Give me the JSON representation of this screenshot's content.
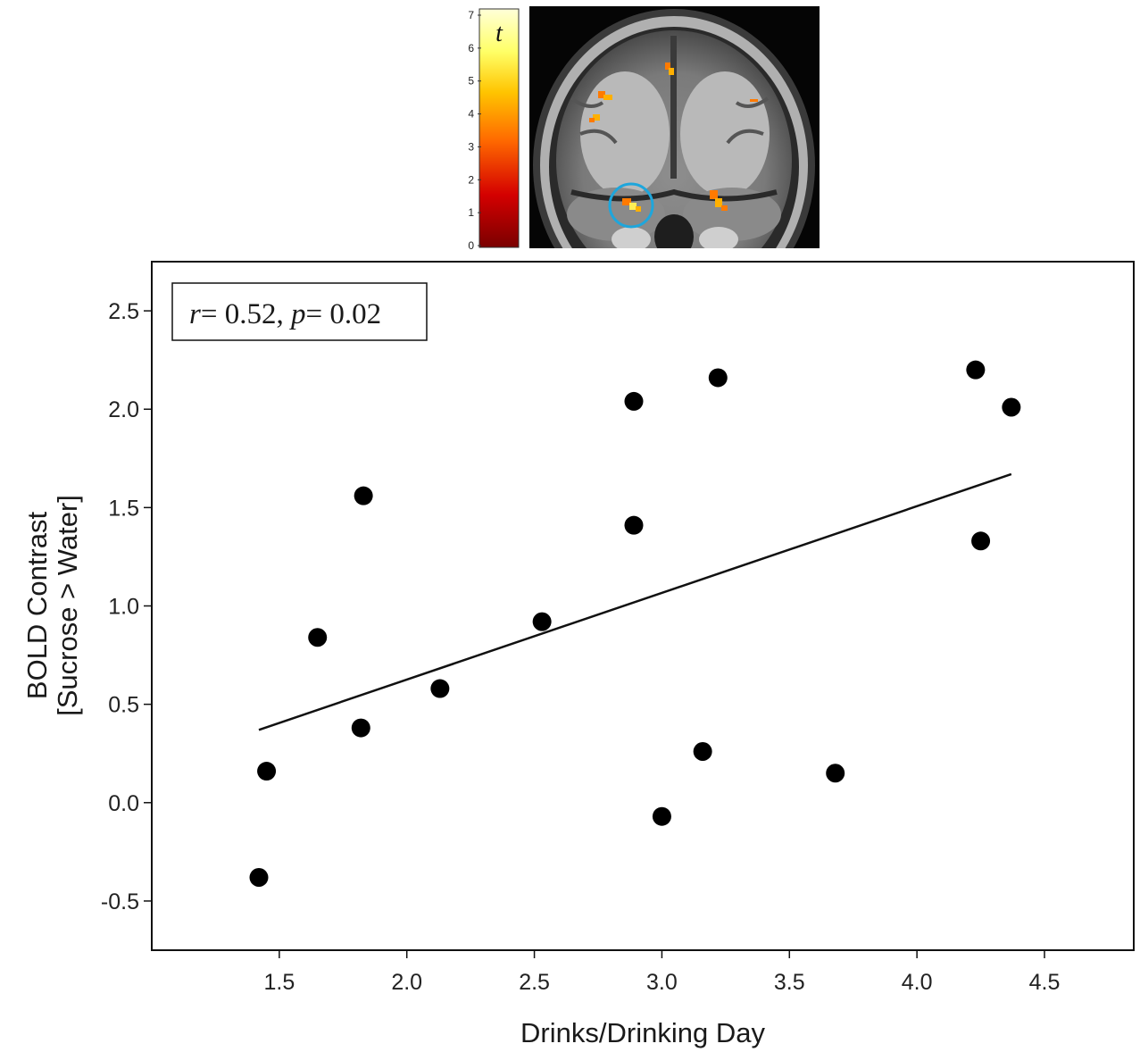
{
  "chart_data": {
    "type": "scatter",
    "title": "",
    "xlabel": "Drinks/Drinking Day",
    "ylabel": [
      "BOLD Contrast",
      "[Sucrose > Water]"
    ],
    "xlim": [
      1.0,
      4.85
    ],
    "ylim": [
      -0.75,
      2.75
    ],
    "x_ticks": [
      "1.5",
      "2.0",
      "2.5",
      "3.0",
      "3.5",
      "4.0",
      "4.5"
    ],
    "y_ticks": [
      "-0.5",
      "0.0",
      "0.5",
      "1.0",
      "1.5",
      "2.0",
      "2.5"
    ],
    "grid": false,
    "points": [
      {
        "x": 1.42,
        "y": -0.38
      },
      {
        "x": 1.45,
        "y": 0.16
      },
      {
        "x": 1.65,
        "y": 0.84
      },
      {
        "x": 1.82,
        "y": 0.38
      },
      {
        "x": 1.83,
        "y": 1.56
      },
      {
        "x": 2.13,
        "y": 0.58
      },
      {
        "x": 2.53,
        "y": 0.92
      },
      {
        "x": 2.89,
        "y": 2.04
      },
      {
        "x": 2.89,
        "y": 1.41
      },
      {
        "x": 3.0,
        "y": -0.07
      },
      {
        "x": 3.16,
        "y": 0.26
      },
      {
        "x": 3.22,
        "y": 2.16
      },
      {
        "x": 3.68,
        "y": 0.15
      },
      {
        "x": 4.23,
        "y": 2.2
      },
      {
        "x": 4.25,
        "y": 1.33
      },
      {
        "x": 4.37,
        "y": 2.01
      }
    ],
    "fit_line": {
      "x": [
        1.42,
        4.37
      ],
      "y": [
        0.37,
        1.67
      ]
    },
    "annotation": {
      "parts": [
        {
          "text": "r",
          "italic": true
        },
        {
          "text": "= 0.52, ",
          "italic": false
        },
        {
          "text": "p",
          "italic": true
        },
        {
          "text": "= 0.02",
          "italic": false
        }
      ]
    }
  },
  "inset": {
    "colorbar_symbol": "t",
    "colorbar_ticks": [
      "0",
      "1",
      "2",
      "3",
      "4",
      "5",
      "6",
      "7"
    ],
    "colorbar_colors": [
      "#7a0000",
      "#d40000",
      "#ff6a00",
      "#ffc400",
      "#ffff66",
      "#ffffd8"
    ],
    "image": "coronal-brain-slice",
    "highlight_circle_color": "#1ea6dc",
    "activation_colors": [
      "#ff7a00",
      "#ffb000",
      "#ffee55"
    ]
  }
}
